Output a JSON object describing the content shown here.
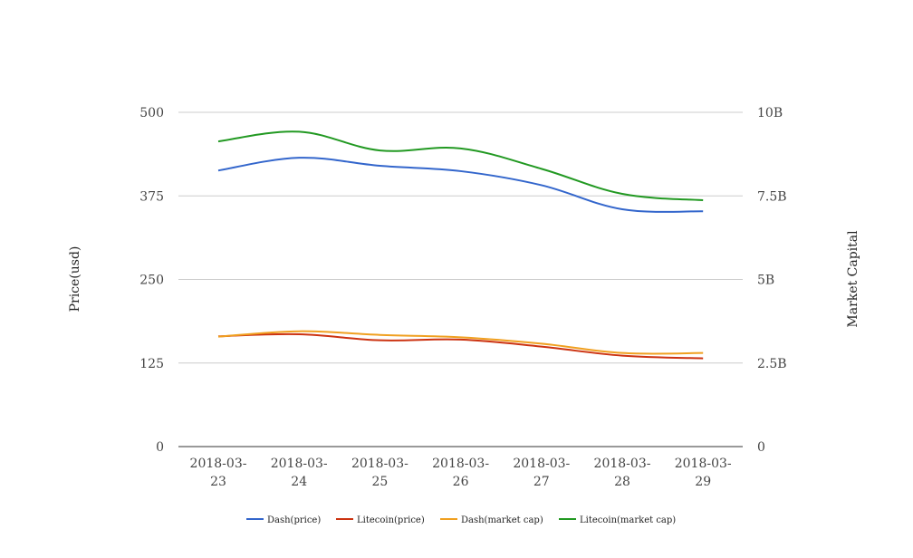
{
  "chart_data": {
    "type": "line",
    "categories": [
      "2018-03-23",
      "2018-03-24",
      "2018-03-25",
      "2018-03-26",
      "2018-03-27",
      "2018-03-28",
      "2018-03-29"
    ],
    "category_lines": [
      [
        "2018-03-",
        "23"
      ],
      [
        "2018-03-",
        "24"
      ],
      [
        "2018-03-",
        "25"
      ],
      [
        "2018-03-",
        "26"
      ],
      [
        "2018-03-",
        "27"
      ],
      [
        "2018-03-",
        "28"
      ],
      [
        "2018-03-",
        "29"
      ]
    ],
    "ylabel": "Price(usd)",
    "y2label": "Market Capital",
    "ylim": [
      0,
      500
    ],
    "y2lim": [
      0,
      10000000000
    ],
    "yticks": [
      0,
      125,
      250,
      375,
      500
    ],
    "ytick_labels": [
      "0",
      "125",
      "250",
      "375",
      "500"
    ],
    "y2ticks": [
      0,
      2500000000,
      5000000000,
      7500000000,
      10000000000
    ],
    "y2tick_labels": [
      "0",
      "2.5B",
      "5B",
      "7.5B",
      "10B"
    ],
    "grid": true,
    "legend_position": "bottom",
    "series": [
      {
        "name": "Dash(price)",
        "axis": "left",
        "color": "#3366cc",
        "values": [
          413,
          432,
          420,
          412,
          391,
          355,
          352
        ]
      },
      {
        "name": "Litecoin(price)",
        "axis": "right",
        "color": "#cc3311",
        "values": [
          3300000000,
          3360000000,
          3180000000,
          3200000000,
          2990000000,
          2720000000,
          2640000000
        ]
      },
      {
        "name": "Dash(market cap)",
        "axis": "right",
        "color": "#f0a020",
        "values": [
          3290000000,
          3450000000,
          3340000000,
          3270000000,
          3080000000,
          2800000000,
          2800000000
        ]
      },
      {
        "name": "Litecoin(market cap)",
        "axis": "right",
        "color": "#229922",
        "values": [
          9130000000,
          9420000000,
          8860000000,
          8920000000,
          8310000000,
          7560000000,
          7370000000
        ]
      }
    ]
  }
}
